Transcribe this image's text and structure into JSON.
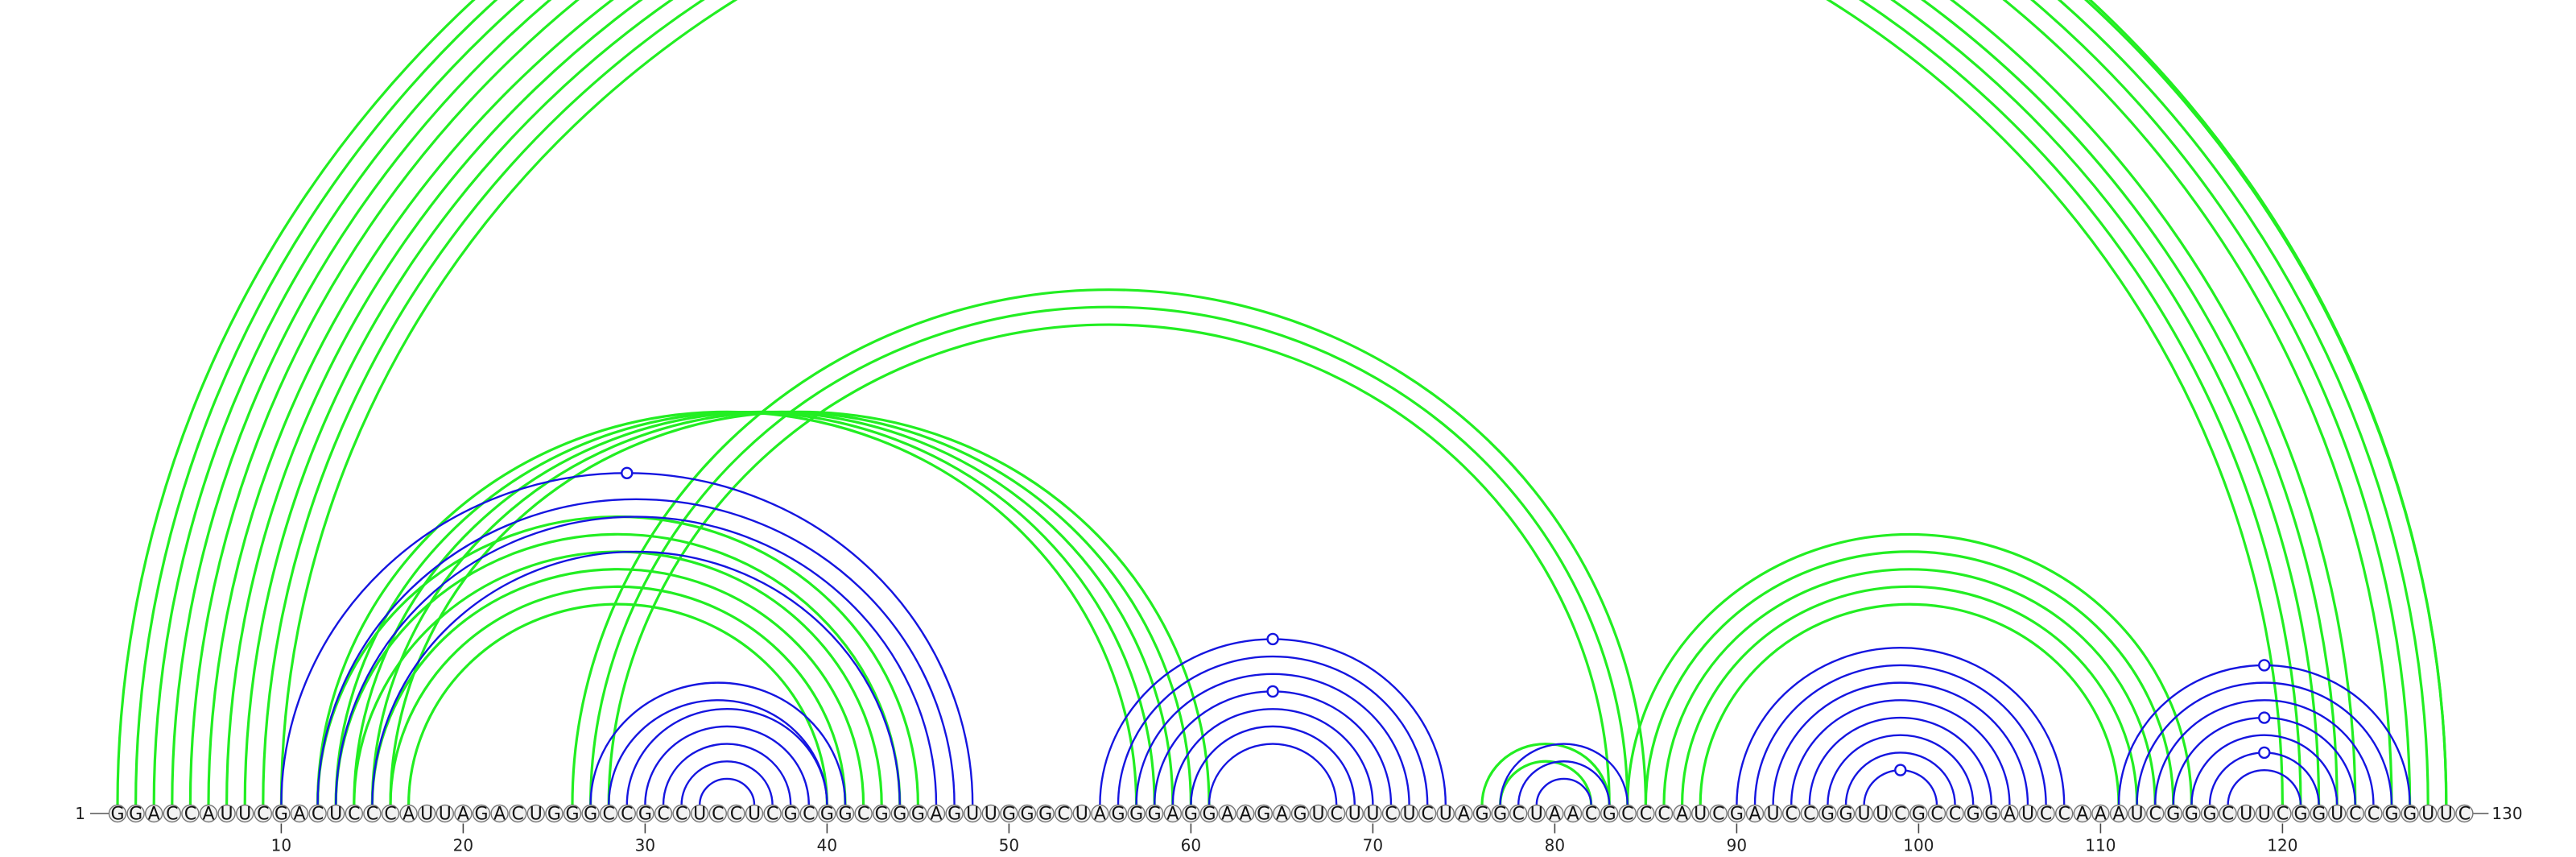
{
  "sequence": "GGACCAUUCGACUCCCAUUAGACUGGGCCGCCUCCUCGCGGCGGGAGUUGGGCUAGGGAGGAAGAGUCUUCUCUAGGCUAACGCCCAUCGAUCCGGUUCGCCGGAUCCAAAUCGGGCUUCGGUCCGGUUC",
  "start_label": "1",
  "end_label": "130",
  "tick_labels": [
    "10",
    "20",
    "30",
    "40",
    "50",
    "60",
    "70",
    "80",
    "90",
    "100",
    "110",
    "120"
  ],
  "colors": {
    "green": "#22ee22",
    "blue": "#1515e0",
    "axis": "#555555"
  },
  "chart_data": {
    "type": "arc-diagram",
    "length": 130,
    "series": [
      {
        "color": "green",
        "pairs": [
          [
            1,
            129
          ],
          [
            2,
            129
          ],
          [
            3,
            128
          ],
          [
            4,
            127
          ],
          [
            5,
            126
          ],
          [
            6,
            124
          ],
          [
            7,
            123
          ],
          [
            8,
            122
          ],
          [
            9,
            121
          ],
          [
            10,
            120
          ],
          [
            12,
            45
          ],
          [
            13,
            44
          ],
          [
            14,
            43
          ],
          [
            15,
            42
          ],
          [
            16,
            41
          ],
          [
            17,
            40
          ],
          [
            12,
            57
          ],
          [
            13,
            58
          ],
          [
            14,
            59
          ],
          [
            15,
            60
          ],
          [
            16,
            61
          ],
          [
            26,
            85
          ],
          [
            27,
            84
          ],
          [
            28,
            83
          ],
          [
            76,
            83
          ],
          [
            77,
            82
          ],
          [
            84,
            115
          ],
          [
            85,
            114
          ],
          [
            86,
            113
          ],
          [
            87,
            112
          ],
          [
            88,
            111
          ]
        ]
      },
      {
        "color": "blue",
        "pairs": [
          [
            10,
            48
          ],
          [
            12,
            47
          ],
          [
            13,
            46
          ],
          [
            15,
            44
          ],
          [
            27,
            41
          ],
          [
            28,
            40
          ],
          [
            29,
            40
          ],
          [
            30,
            39
          ],
          [
            31,
            38
          ],
          [
            32,
            37
          ],
          [
            33,
            36
          ],
          [
            55,
            74
          ],
          [
            56,
            73
          ],
          [
            57,
            72
          ],
          [
            58,
            71
          ],
          [
            59,
            70
          ],
          [
            60,
            69
          ],
          [
            61,
            68
          ],
          [
            77,
            84
          ],
          [
            78,
            83
          ],
          [
            79,
            82
          ],
          [
            90,
            108
          ],
          [
            91,
            107
          ],
          [
            92,
            106
          ],
          [
            93,
            105
          ],
          [
            94,
            104
          ],
          [
            95,
            103
          ],
          [
            96,
            102
          ],
          [
            97,
            101
          ],
          [
            111,
            127
          ],
          [
            112,
            126
          ],
          [
            113,
            125
          ],
          [
            114,
            124
          ],
          [
            115,
            123
          ],
          [
            116,
            122
          ],
          [
            117,
            121
          ]
        ]
      }
    ],
    "markers": [
      {
        "color": "green",
        "pair": [
          1,
          129
        ]
      },
      {
        "color": "blue",
        "pair": [
          10,
          48
        ]
      },
      {
        "color": "blue",
        "pair": [
          55,
          74
        ]
      },
      {
        "color": "blue",
        "pair": [
          58,
          71
        ]
      },
      {
        "color": "blue",
        "pair": [
          97,
          101
        ]
      },
      {
        "color": "blue",
        "pair": [
          111,
          127
        ]
      },
      {
        "color": "blue",
        "pair": [
          114,
          124
        ]
      },
      {
        "color": "blue",
        "pair": [
          116,
          122
        ]
      }
    ]
  }
}
